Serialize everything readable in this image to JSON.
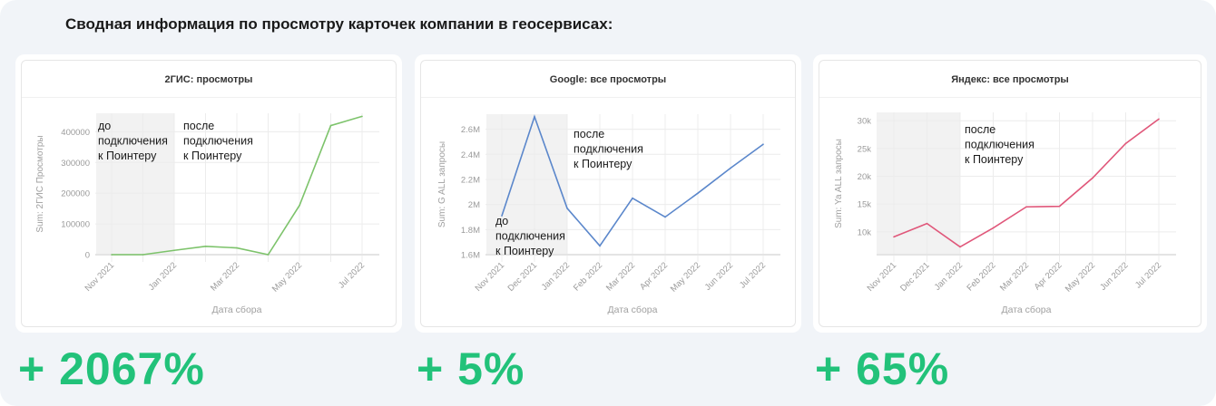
{
  "title": "Сводная информация по просмотру карточек компании в геосервисах:",
  "cards": [
    {
      "header": "2ГИС: просмотры",
      "percent": "+ 2067%"
    },
    {
      "header": "Google: все просмотры",
      "percent": "+ 5%"
    },
    {
      "header": "Яндекс: все просмотры",
      "percent": "+ 65%"
    }
  ],
  "chart_data": [
    {
      "type": "line",
      "title": "2ГИС: просмотры",
      "xlabel": "Дата сбора",
      "ylabel": "Sum: 2ГИС Просмотры",
      "x": [
        "Nov 2021",
        "Dec 2021",
        "Jan 2022",
        "Feb 2022",
        "Mar 2022",
        "Apr 2022",
        "May 2022",
        "Jun 2022",
        "Jul 2022"
      ],
      "x_tick_labels": [
        "Nov 2021",
        "",
        "Jan 2022",
        "",
        "Mar 2022",
        "",
        "May 2022",
        "",
        "Jul 2022"
      ],
      "values": [
        0,
        0,
        14000,
        27000,
        22000,
        0,
        160000,
        420000,
        450000
      ],
      "yticks": [
        0,
        100000,
        200000,
        300000,
        400000
      ],
      "ytick_labels": [
        "0",
        "100000",
        "200000",
        "300000",
        "400000"
      ],
      "ylim": [
        0,
        460000
      ],
      "color": "#7dc36b",
      "shade_range": [
        "Oct 2021",
        "Jan 2022"
      ],
      "annotations": [
        {
          "lines": [
            "до",
            "подключения",
            "к Поинтеру"
          ]
        },
        {
          "lines": [
            "после",
            "подключения",
            "к Поинтеру"
          ]
        }
      ],
      "grid": true
    },
    {
      "type": "line",
      "title": "Google: все просмотры",
      "xlabel": "Дата сбора",
      "ylabel": "Sum: G ALL запросы",
      "x": [
        "Nov 2021",
        "Dec 2021",
        "Jan 2022",
        "Feb 2022",
        "Mar 2022",
        "Apr 2022",
        "May 2022",
        "Jun 2022",
        "Jul 2022"
      ],
      "x_tick_labels": [
        "Nov 2021",
        "Dec 2021",
        "Jan 2022",
        "Feb 2022",
        "Mar 2022",
        "Apr 2022",
        "May 2022",
        "Jun 2022",
        "Jul 2022"
      ],
      "values": [
        1910000,
        2700000,
        1970000,
        1670000,
        2050000,
        1900000,
        2090000,
        2290000,
        2480000
      ],
      "yticks": [
        1600000,
        1800000,
        2000000,
        2200000,
        2400000,
        2600000
      ],
      "ytick_labels": [
        "1.6M",
        "1.8M",
        "2M",
        "2.2M",
        "2.4M",
        "2.6M"
      ],
      "ylim": [
        1600000,
        2720000
      ],
      "color": "#5b87cb",
      "shade_range": [
        "Oct 2021",
        "Jan 2022"
      ],
      "annotations": [
        {
          "lines": [
            "до",
            "подключения",
            "к Поинтеру"
          ]
        },
        {
          "lines": [
            "после",
            "подключения",
            "к Поинтеру"
          ]
        }
      ],
      "grid": true
    },
    {
      "type": "line",
      "title": "Яндекс: все просмотры",
      "xlabel": "Дата сбора",
      "ylabel": "Sum: Ya ALL запросы",
      "x": [
        "Nov 2021",
        "Dec 2021",
        "Jan 2022",
        "Feb 2022",
        "Mar 2022",
        "Apr 2022",
        "May 2022",
        "Jun 2022",
        "Jul 2022"
      ],
      "x_tick_labels": [
        "Nov 2021",
        "Dec 2021",
        "Jan 2022",
        "Feb 2022",
        "Mar 2022",
        "Apr 2022",
        "May 2022",
        "Jun 2022",
        "Jul 2022"
      ],
      "values": [
        9100,
        11500,
        7300,
        10700,
        14500,
        14600,
        19700,
        25900,
        30300
      ],
      "yticks": [
        10000,
        15000,
        20000,
        25000,
        30000
      ],
      "ytick_labels": [
        "10k",
        "15k",
        "20k",
        "25k",
        "30k"
      ],
      "ylim": [
        5900,
        31500
      ],
      "color": "#e0577a",
      "shade_range": [
        "Oct 2021",
        "Jan 2022"
      ],
      "annotations": [
        {
          "lines": [
            "после",
            "подключения",
            "к Поинтеру"
          ]
        }
      ],
      "grid": true
    }
  ]
}
